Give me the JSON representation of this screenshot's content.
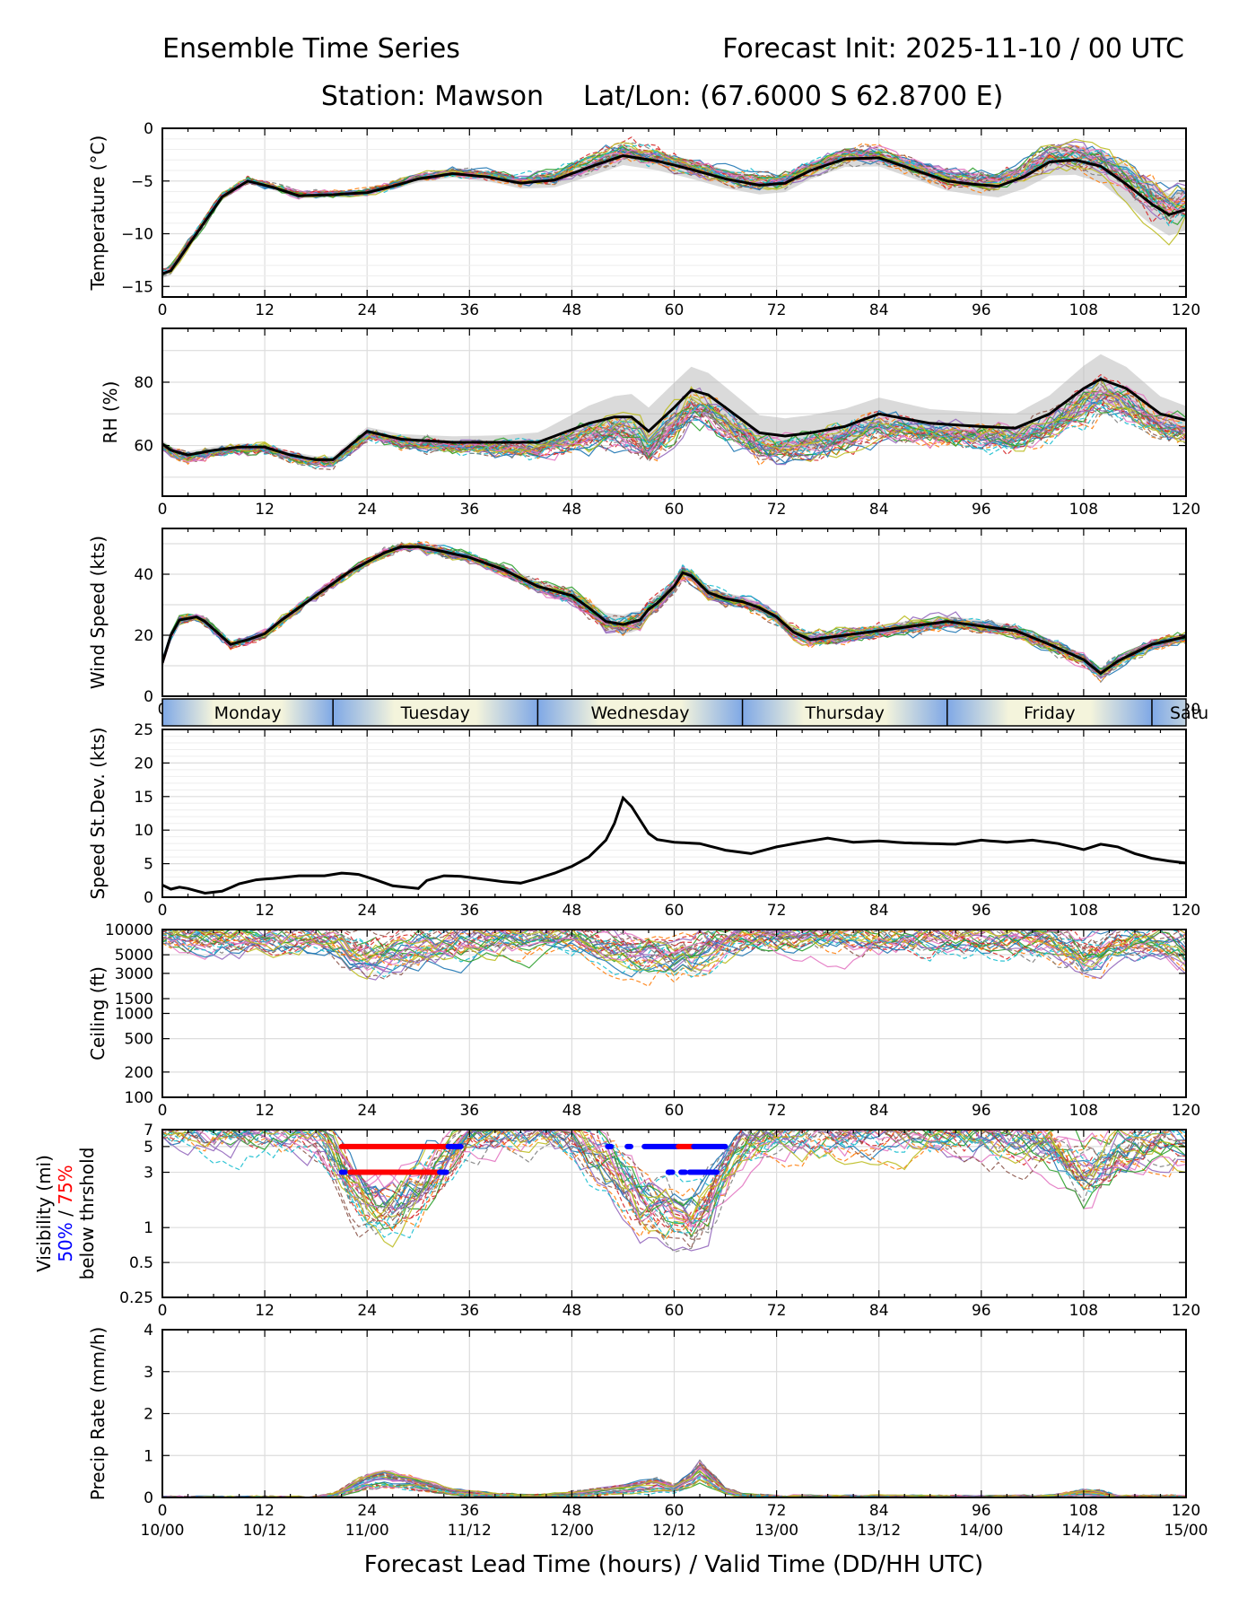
{
  "header": {
    "title_left": "Ensemble Time Series",
    "title_right": "Forecast Init: 2025-11-10 / 00 UTC",
    "station": "Station: Mawson",
    "latlon": "Lat/Lon: (67.6000 S 62.8700 E)"
  },
  "colors": {
    "members": [
      "#1f77b4",
      "#ff7f0e",
      "#2ca02c",
      "#d62728",
      "#9467bd",
      "#8c564b",
      "#e377c2",
      "#7f7f7f",
      "#bcbd22",
      "#17becf"
    ],
    "mean": "#000000",
    "spread": "#bbbbbb",
    "grid": "#dddddd",
    "vis50": "#0000ff",
    "vis75": "#ff0000",
    "day_light": "#f4f4dc",
    "day_dark": "#7fa8e6"
  },
  "x_axis": {
    "range": [
      0,
      120
    ],
    "ticks": [
      0,
      12,
      24,
      36,
      48,
      60,
      72,
      84,
      96,
      108,
      120
    ],
    "tick_labels": [
      "0",
      "12",
      "24",
      "36",
      "48",
      "60",
      "72",
      "84",
      "96",
      "108",
      "120"
    ],
    "valid_labels": [
      "10/00",
      "10/12",
      "11/00",
      "11/12",
      "12/00",
      "12/12",
      "13/00",
      "13/12",
      "14/00",
      "14/12",
      "15/00"
    ],
    "label": "Forecast Lead Time (hours) / Valid Time (DD/HH UTC)"
  },
  "day_strip": {
    "days": [
      {
        "name": "Monday",
        "start": 0,
        "end": 20
      },
      {
        "name": "Tuesday",
        "start": 20,
        "end": 44
      },
      {
        "name": "Wednesday",
        "start": 44,
        "end": 68
      },
      {
        "name": "Thursday",
        "start": 68,
        "end": 92
      },
      {
        "name": "Friday",
        "start": 92,
        "end": 116
      },
      {
        "name": "Satu",
        "start": 116,
        "end": 140
      }
    ]
  },
  "chart_data": [
    {
      "type": "line",
      "id": "temperature",
      "ylabel": "Temperature (°C)",
      "ylim": [
        -16,
        0
      ],
      "yticks": [
        -15,
        -10,
        -5,
        0
      ],
      "ytick_labels": [
        "−15",
        "−10",
        "−5",
        "0"
      ],
      "ymajor_grid": [
        -15,
        -10,
        -5,
        0
      ],
      "yminor_grid": [
        -14,
        -13,
        -12,
        -11,
        -9,
        -8,
        -7,
        -6,
        -4,
        -3,
        -2,
        -1
      ],
      "ensemble_members": 30,
      "noise": 0.4,
      "spread_scale": 0.22,
      "mean_x": [
        0,
        1,
        4,
        7,
        10,
        13,
        16,
        20,
        24,
        27,
        30,
        34,
        38,
        42,
        46,
        50,
        54,
        58,
        62,
        66,
        70,
        73,
        76,
        80,
        84,
        88,
        92,
        95,
        98,
        101,
        104,
        107,
        110,
        113,
        116,
        118,
        120
      ],
      "mean_y": [
        -13.8,
        -13.5,
        -10,
        -6.5,
        -5,
        -5.6,
        -6.4,
        -6.3,
        -6.1,
        -5.5,
        -4.8,
        -4.3,
        -4.6,
        -5.2,
        -4.9,
        -3.7,
        -2.6,
        -3.1,
        -3.9,
        -4.8,
        -5.4,
        -5.2,
        -4,
        -2.9,
        -2.8,
        -3.9,
        -5,
        -5.3,
        -5.5,
        -4.6,
        -3.2,
        -3,
        -3.6,
        -5.3,
        -7.2,
        -8.2,
        -7.7
      ],
      "spread_x": [
        0,
        10,
        20,
        30,
        40,
        50,
        60,
        70,
        80,
        90,
        100,
        105,
        110,
        115,
        120
      ],
      "spread_y": [
        2,
        1.2,
        1.2,
        1.5,
        2,
        4,
        4,
        4,
        3.5,
        4,
        5,
        6,
        7,
        9,
        9
      ],
      "vis_markers": []
    },
    {
      "type": "line",
      "id": "rh",
      "ylabel": "RH (%)",
      "ylim": [
        44,
        97
      ],
      "yticks": [
        60,
        80
      ],
      "ytick_labels": [
        "60",
        "80"
      ],
      "ymajor_grid": [
        50,
        60,
        70,
        80,
        90
      ],
      "yminor_grid": [],
      "ensemble_members": 30,
      "noise": 3,
      "spread_scale": 0.28,
      "mean_x": [
        0,
        1,
        3,
        6,
        9,
        12,
        15,
        18,
        20,
        22,
        24,
        28,
        34,
        40,
        44,
        47,
        50,
        53,
        55,
        57,
        60,
        62,
        64,
        67,
        70,
        73,
        76,
        80,
        84,
        90,
        96,
        100,
        104,
        108,
        110,
        113,
        117,
        120
      ],
      "mean_y": [
        60.5,
        58.5,
        57,
        58.5,
        59.5,
        59.5,
        57,
        55.5,
        55.5,
        60,
        64.5,
        62,
        61,
        61,
        61,
        64,
        67,
        69,
        69,
        64.5,
        72,
        77.5,
        76,
        70,
        64,
        63,
        64,
        66,
        70,
        67,
        66,
        65.5,
        70,
        78,
        81,
        78,
        70,
        68
      ],
      "spread_x": [
        0,
        10,
        20,
        30,
        40,
        45,
        50,
        55,
        60,
        65,
        70,
        80,
        90,
        100,
        105,
        110,
        115,
        120
      ],
      "spread_y": [
        4,
        4,
        4,
        6,
        8,
        12,
        20,
        26,
        28,
        24,
        20,
        20,
        16,
        16,
        22,
        28,
        22,
        16
      ],
      "vis_markers": []
    },
    {
      "type": "line",
      "id": "wind",
      "ylabel": "Wind Speed (kts)",
      "ylim": [
        0,
        55
      ],
      "yticks": [
        0,
        20,
        40
      ],
      "ytick_labels": [
        "0",
        "20",
        "40"
      ],
      "ymajor_grid": [
        0,
        10,
        20,
        30,
        40,
        50
      ],
      "yminor_grid": [],
      "ensemble_members": 30,
      "noise": 2.5,
      "spread_scale": 0.22,
      "mean_x": [
        0,
        1,
        2,
        4,
        5,
        7,
        8,
        10,
        12,
        14,
        18,
        22,
        26,
        28,
        30,
        32,
        36,
        40,
        44,
        48,
        50,
        52,
        54,
        56,
        57,
        58,
        60,
        61,
        62,
        64,
        66,
        68,
        70,
        72,
        74,
        76,
        80,
        84,
        88,
        92,
        96,
        100,
        104,
        108,
        110,
        112,
        116,
        120
      ],
      "mean_y": [
        11,
        20,
        25,
        26,
        24.5,
        19.5,
        17,
        18.5,
        20.5,
        25,
        33,
        41,
        47,
        49,
        49,
        48,
        45.5,
        41.5,
        36,
        33,
        29,
        24.5,
        23.5,
        25,
        28.5,
        30.5,
        36,
        40.5,
        39.5,
        34,
        32,
        31,
        29,
        26,
        21,
        18.5,
        20,
        21.5,
        23,
        24.5,
        23,
        21.5,
        17,
        12,
        7.5,
        11.5,
        17,
        19.5
      ],
      "spread_x": [
        0,
        20,
        40,
        48,
        55,
        60,
        70,
        80,
        90,
        100,
        110,
        120
      ],
      "spread_y": [
        3,
        4,
        6,
        10,
        15,
        9,
        8,
        8.5,
        8.5,
        8.5,
        7.5,
        5
      ],
      "vis_markers": []
    },
    {
      "type": "line",
      "id": "stdev",
      "ylabel": "Speed St.Dev. (kts)",
      "ylim": [
        0,
        25
      ],
      "yticks": [
        0,
        5,
        10,
        15,
        20,
        25
      ],
      "ytick_labels": [
        "0",
        "5",
        "10",
        "15",
        "20",
        "25"
      ],
      "ymajor_grid": [
        0,
        5,
        10,
        15,
        20,
        25
      ],
      "yminor_grid": [
        1,
        2,
        3,
        4,
        6,
        7,
        8,
        9,
        11,
        12,
        13,
        14,
        16,
        17,
        18,
        19,
        21,
        22,
        23,
        24
      ],
      "ensemble_members": 0,
      "noise": 0,
      "spread_scale": 0,
      "mean_x": [
        0,
        1,
        2,
        3,
        5,
        7,
        9,
        11,
        13,
        16,
        19,
        21,
        23,
        25,
        27,
        30,
        31,
        33,
        35,
        37,
        40,
        42,
        44,
        46,
        48,
        50,
        52,
        53,
        54,
        55,
        56,
        57,
        58,
        60,
        63,
        66,
        69,
        72,
        75,
        78,
        81,
        84,
        87,
        90,
        93,
        96,
        99,
        102,
        105,
        108,
        110,
        112,
        114,
        116,
        118,
        120
      ],
      "mean_y": [
        1.8,
        1.2,
        1.5,
        1.3,
        0.6,
        0.9,
        2,
        2.6,
        2.8,
        3.2,
        3.2,
        3.6,
        3.4,
        2.6,
        1.7,
        1.3,
        2.5,
        3.2,
        3.1,
        2.8,
        2.3,
        2.1,
        2.8,
        3.6,
        4.6,
        6,
        8.5,
        11,
        14.8,
        13.5,
        11.5,
        9.5,
        8.6,
        8.2,
        8,
        7,
        6.5,
        7.5,
        8.2,
        8.8,
        8.2,
        8.4,
        8.1,
        8,
        7.9,
        8.5,
        8.2,
        8.5,
        8,
        7.1,
        7.9,
        7.5,
        6.5,
        5.8,
        5.4,
        5.1
      ],
      "spread_x": [],
      "spread_y": [],
      "vis_markers": []
    },
    {
      "type": "line",
      "id": "ceiling",
      "ylabel": "Ceiling (ft)",
      "yscale": "log",
      "ylim": [
        100,
        10000
      ],
      "yticks": [
        100,
        200,
        500,
        1000,
        1500,
        3000,
        5000,
        10000
      ],
      "ytick_labels": [
        "100",
        "200",
        "500",
        "1000",
        "1500",
        "3000",
        "5000",
        "10000"
      ],
      "ymajor_grid": [
        100,
        200,
        500,
        1000,
        1500,
        3000,
        5000,
        10000
      ],
      "yminor_grid": [],
      "ensemble_members": 30,
      "noise": 0,
      "spread_scale": 0,
      "mean_x": [
        0,
        10,
        18,
        20,
        22,
        24,
        26,
        28,
        30,
        32,
        34,
        36,
        40,
        44,
        48,
        50,
        52,
        54,
        56,
        58,
        60,
        62,
        64,
        66,
        68,
        72,
        76,
        80,
        84,
        88,
        92,
        96,
        100,
        104,
        106,
        108,
        110,
        112,
        114,
        116,
        118,
        120
      ],
      "mean_y": [
        10000,
        10000,
        9600,
        8600,
        7200,
        6200,
        6300,
        6900,
        7500,
        7800,
        8200,
        8800,
        9200,
        9600,
        9400,
        8600,
        7400,
        6900,
        5900,
        6300,
        5400,
        4600,
        5800,
        7300,
        8800,
        9200,
        9400,
        9300,
        9400,
        9300,
        9400,
        9600,
        9400,
        8900,
        7400,
        5800,
        6400,
        7900,
        8400,
        8900,
        7900,
        6900
      ],
      "spread_x": [],
      "spread_y": [],
      "vis_markers": []
    },
    {
      "type": "line",
      "id": "visibility",
      "ylabel_lines": [
        "Visibility (mi)",
        "50% / 75%",
        "below thrshold"
      ],
      "ylabel_50": "50%",
      "ylabel_sep": " / ",
      "ylabel_75": "75%",
      "ylabel_line1": "Visibility (mi)",
      "ylabel_line3": "below thrshold",
      "yscale": "log",
      "ylim": [
        0.25,
        7
      ],
      "yticks": [
        0.25,
        0.5,
        1,
        3,
        5,
        7
      ],
      "ytick_labels": [
        "0.25",
        "0.5",
        "1",
        "3",
        "5",
        "7"
      ],
      "ymajor_grid": [
        0.25,
        0.5,
        1,
        3,
        5,
        7
      ],
      "yminor_grid": [],
      "ensemble_members": 30,
      "noise": 0,
      "spread_scale": 0,
      "mean_x": [
        0,
        14,
        18,
        20,
        22,
        24,
        26,
        28,
        30,
        32,
        34,
        36,
        40,
        44,
        48,
        50,
        52,
        54,
        56,
        58,
        60,
        62,
        64,
        66,
        68,
        72,
        76,
        80,
        84,
        88,
        92,
        96,
        100,
        104,
        106,
        108,
        110,
        112,
        116,
        120
      ],
      "mean_y": [
        7,
        7,
        6.5,
        4,
        2.2,
        1.5,
        1.4,
        1.6,
        2,
        2.8,
        4,
        5.5,
        6.3,
        6.5,
        5.5,
        4.2,
        3.2,
        2.2,
        1.5,
        1.4,
        1.2,
        1.1,
        1.5,
        2.8,
        4.8,
        6,
        6.4,
        6.2,
        6.6,
        6.4,
        6.2,
        6,
        5.5,
        4.6,
        3.6,
        2.8,
        3.2,
        4.5,
        5.5,
        5.5
      ],
      "spread_x": [],
      "spread_y": [],
      "vis_markers": [
        {
          "level": 5,
          "color": "red",
          "x0": 21,
          "x1": 33.5
        },
        {
          "level": 5,
          "color": "blue",
          "x0": 33.5,
          "x1": 35
        },
        {
          "level": 3,
          "color": "red",
          "x0": 22,
          "x1": 32.5
        },
        {
          "level": 3,
          "color": "blue",
          "x0": 32.5,
          "x1": 33.3
        },
        {
          "level": 3,
          "color": "blue",
          "x0": 21,
          "x1": 21.4
        },
        {
          "level": 5,
          "color": "blue",
          "x0": 52.2,
          "x1": 52.6
        },
        {
          "level": 5,
          "color": "blue",
          "x0": 54.5,
          "x1": 54.9
        },
        {
          "level": 5,
          "color": "blue",
          "x0": 56.5,
          "x1": 60.5
        },
        {
          "level": 5,
          "color": "red",
          "x0": 60.5,
          "x1": 62.3
        },
        {
          "level": 5,
          "color": "blue",
          "x0": 62.3,
          "x1": 66
        },
        {
          "level": 3,
          "color": "blue",
          "x0": 59.3,
          "x1": 59.8
        },
        {
          "level": 3,
          "color": "blue",
          "x0": 60.8,
          "x1": 61.3
        },
        {
          "level": 3,
          "color": "blue",
          "x0": 61.8,
          "x1": 65
        }
      ]
    },
    {
      "type": "line",
      "id": "precip",
      "ylabel": "Precip Rate (mm/h)",
      "ylim": [
        0,
        4
      ],
      "yticks": [
        0,
        1,
        2,
        3,
        4
      ],
      "ytick_labels": [
        "0",
        "1",
        "2",
        "3",
        "4"
      ],
      "ymajor_grid": [
        0,
        1,
        2,
        3,
        4
      ],
      "yminor_grid": [],
      "ensemble_members": 30,
      "noise": 0.05,
      "spread_scale": 0,
      "mean_x": [
        0,
        18,
        20,
        22,
        24,
        26,
        28,
        30,
        32,
        34,
        36,
        40,
        44,
        48,
        52,
        56,
        58,
        60,
        62,
        63,
        64,
        66,
        68,
        72,
        84,
        96,
        104,
        108,
        110,
        112,
        118,
        120
      ],
      "mean_y": [
        0,
        0,
        0.05,
        0.2,
        0.35,
        0.4,
        0.35,
        0.3,
        0.2,
        0.12,
        0.1,
        0.05,
        0.03,
        0.08,
        0.15,
        0.25,
        0.3,
        0.2,
        0.4,
        0.6,
        0.45,
        0.15,
        0.05,
        0.02,
        0.02,
        0.01,
        0.02,
        0.12,
        0.1,
        0.02,
        0.02,
        0.01
      ],
      "spread_x": [],
      "spread_y": [],
      "vis_markers": []
    }
  ]
}
